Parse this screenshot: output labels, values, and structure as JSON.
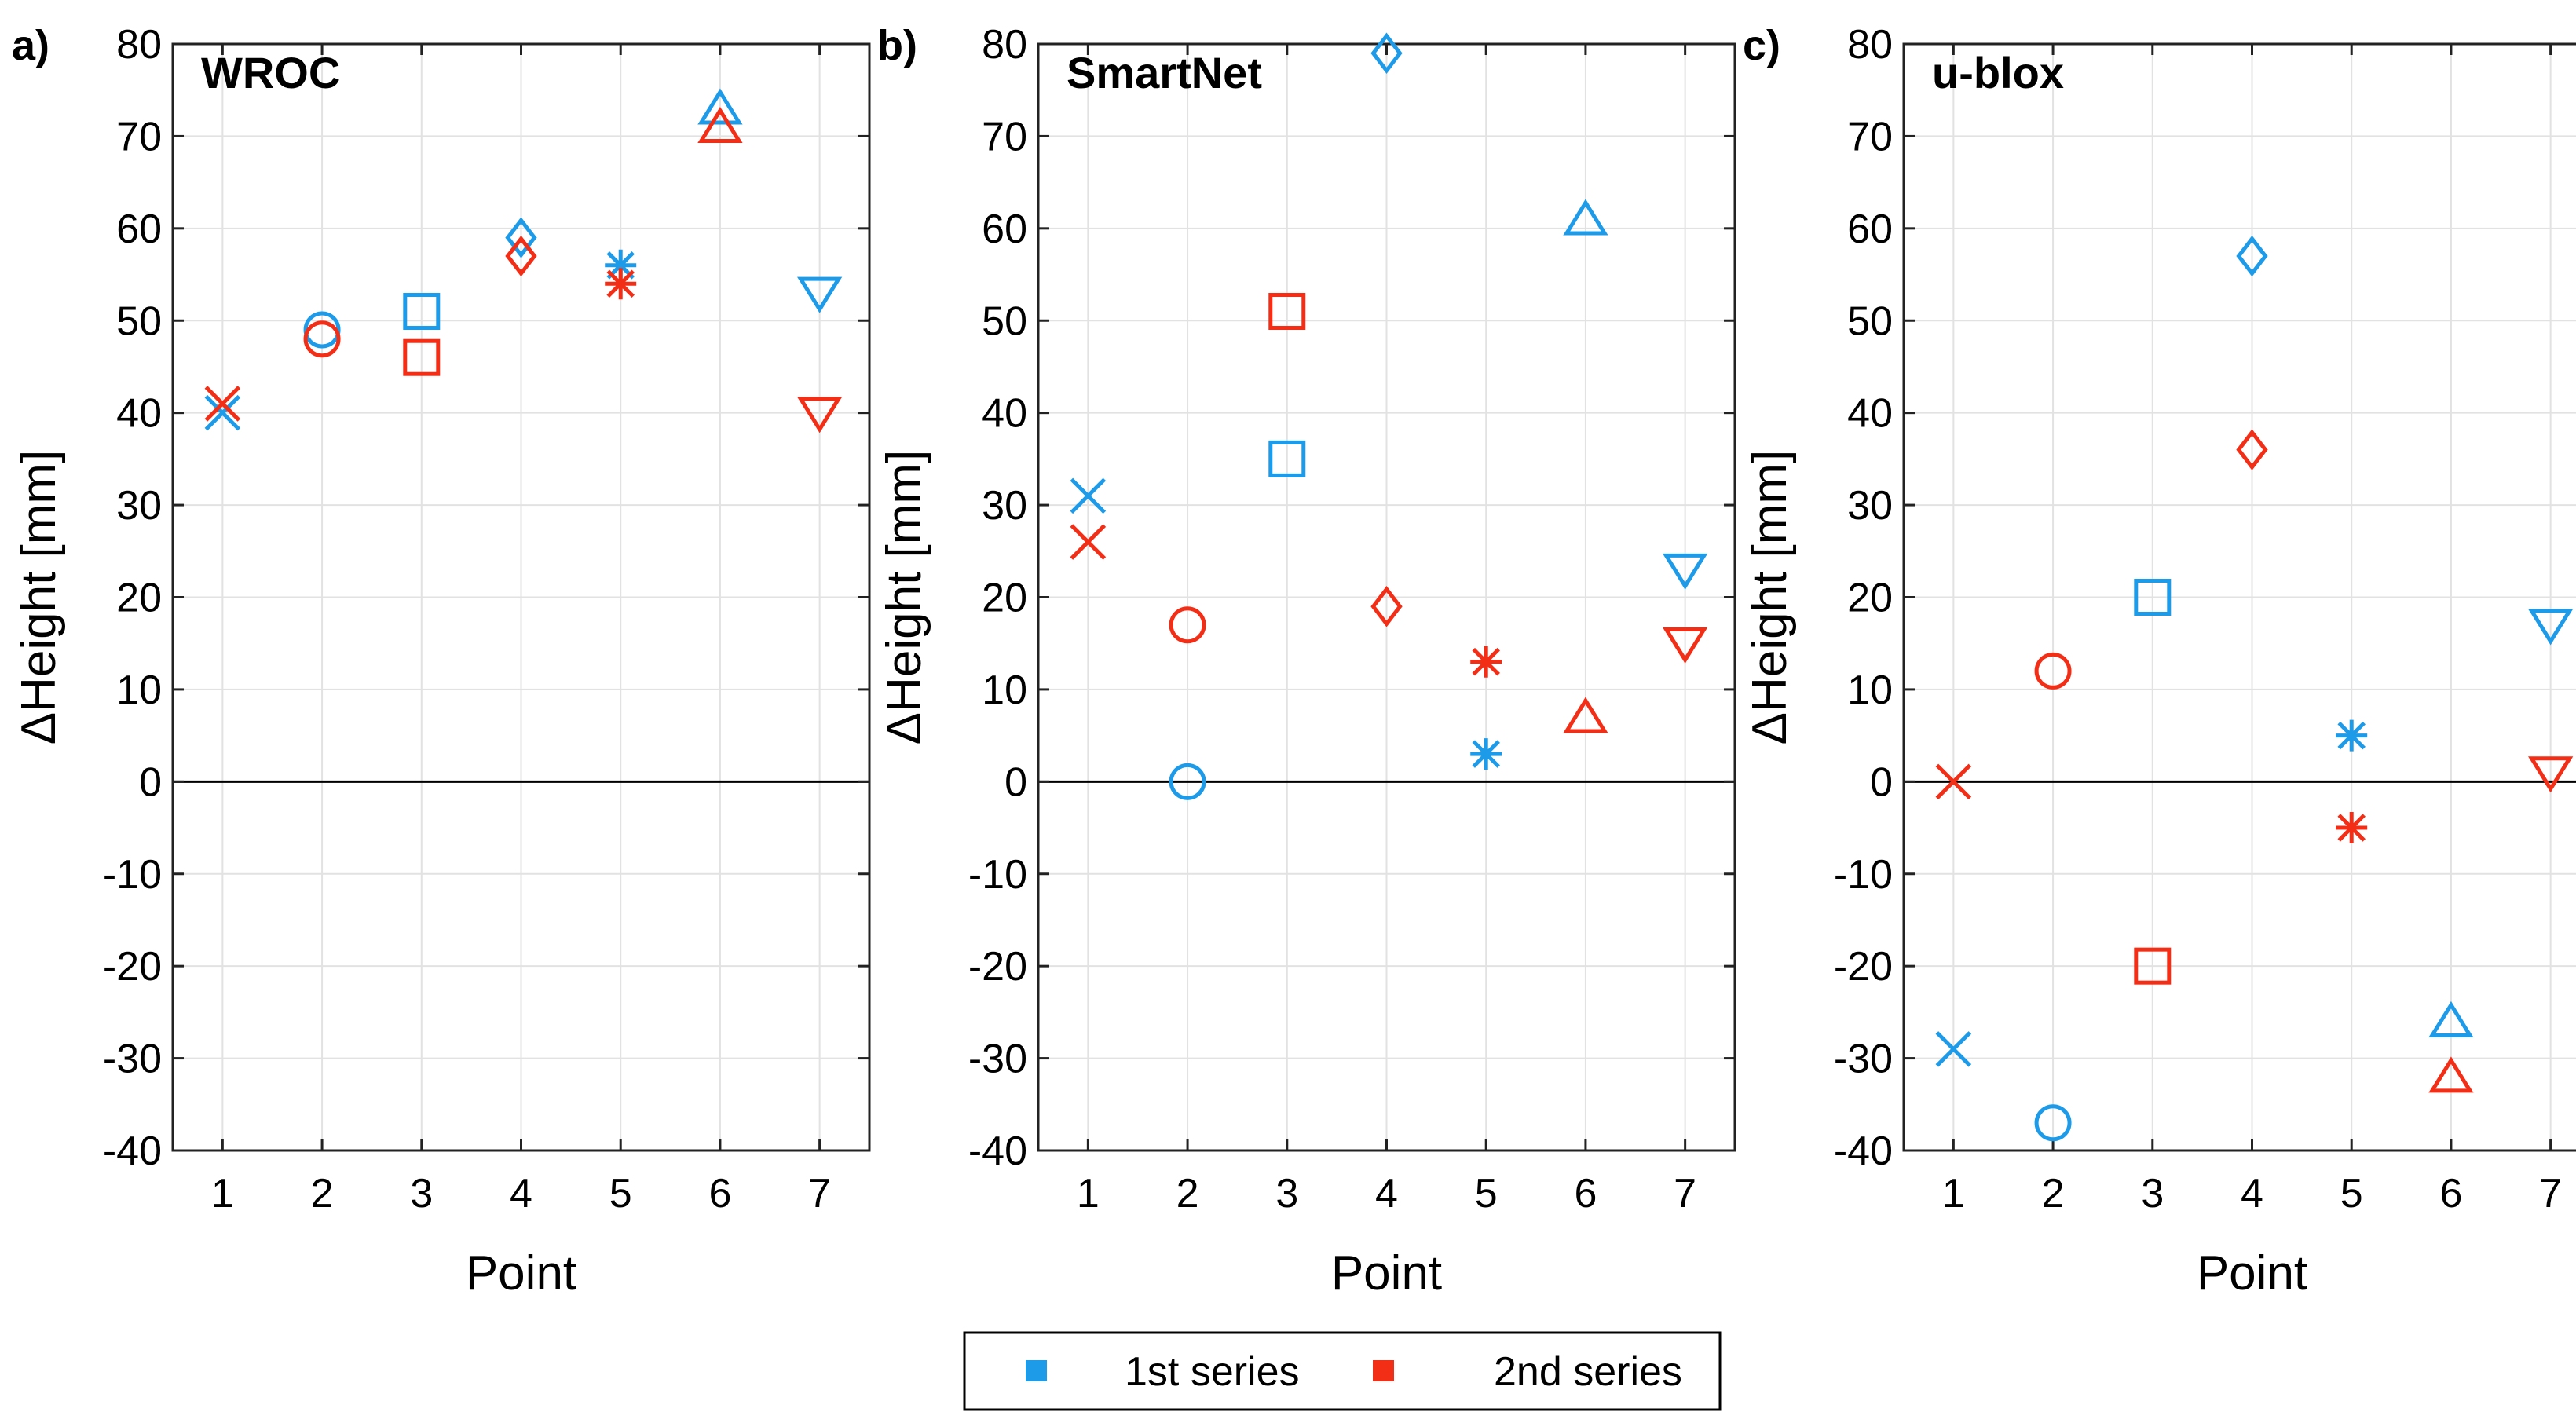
{
  "chart_data": [
    {
      "type": "scatter",
      "panel_label": "a)",
      "title": "WROC",
      "xlabel": "Point",
      "ylabel": "ΔHeight [mm]",
      "xlim": [
        0.5,
        7.5
      ],
      "ylim": [
        -40,
        80
      ],
      "x_ticks": [
        1,
        2,
        3,
        4,
        5,
        6,
        7
      ],
      "y_ticks": [
        -40,
        -30,
        -20,
        -10,
        0,
        10,
        20,
        30,
        40,
        50,
        60,
        70,
        80
      ],
      "grid": true,
      "markers_by_point": [
        "x",
        "circle",
        "square",
        "diamond",
        "asterisk",
        "triangle-up",
        "triangle-down"
      ],
      "series": [
        {
          "name": "1st series",
          "color": "#1E9BE8",
          "x": [
            1,
            2,
            3,
            4,
            5,
            6,
            7
          ],
          "y": [
            40,
            49,
            51,
            59,
            56,
            73,
            53
          ]
        },
        {
          "name": "2nd series",
          "color": "#F22E17",
          "x": [
            1,
            2,
            3,
            4,
            5,
            6,
            7
          ],
          "y": [
            41,
            48,
            46,
            57,
            54,
            71,
            40
          ]
        }
      ]
    },
    {
      "type": "scatter",
      "panel_label": "b)",
      "title": "SmartNet",
      "xlabel": "Point",
      "ylabel": "ΔHeight [mm]",
      "xlim": [
        0.5,
        7.5
      ],
      "ylim": [
        -40,
        80
      ],
      "x_ticks": [
        1,
        2,
        3,
        4,
        5,
        6,
        7
      ],
      "y_ticks": [
        -40,
        -30,
        -20,
        -10,
        0,
        10,
        20,
        30,
        40,
        50,
        60,
        70,
        80
      ],
      "grid": true,
      "markers_by_point": [
        "x",
        "circle",
        "square",
        "diamond",
        "asterisk",
        "triangle-up",
        "triangle-down"
      ],
      "series": [
        {
          "name": "1st series",
          "color": "#1E9BE8",
          "x": [
            1,
            2,
            3,
            4,
            5,
            6,
            7
          ],
          "y": [
            31,
            0,
            35,
            79,
            3,
            61,
            23
          ]
        },
        {
          "name": "2nd series",
          "color": "#F22E17",
          "x": [
            1,
            2,
            3,
            4,
            5,
            6,
            7
          ],
          "y": [
            26,
            17,
            51,
            19,
            13,
            7,
            15
          ]
        }
      ]
    },
    {
      "type": "scatter",
      "panel_label": "c)",
      "title": "u-blox",
      "xlabel": "Point",
      "ylabel": "ΔHeight [mm]",
      "xlim": [
        0.5,
        7.5
      ],
      "ylim": [
        -40,
        80
      ],
      "x_ticks": [
        1,
        2,
        3,
        4,
        5,
        6,
        7
      ],
      "y_ticks": [
        -40,
        -30,
        -20,
        -10,
        0,
        10,
        20,
        30,
        40,
        50,
        60,
        70,
        80
      ],
      "grid": true,
      "markers_by_point": [
        "x",
        "circle",
        "square",
        "diamond",
        "asterisk",
        "triangle-up",
        "triangle-down"
      ],
      "series": [
        {
          "name": "1st series",
          "color": "#1E9BE8",
          "x": [
            1,
            2,
            3,
            4,
            5,
            6,
            7
          ],
          "y": [
            -29,
            -37,
            20,
            57,
            5,
            -26,
            17
          ]
        },
        {
          "name": "2nd series",
          "color": "#F22E17",
          "x": [
            1,
            2,
            3,
            4,
            5,
            6,
            7
          ],
          "y": [
            0,
            12,
            -20,
            36,
            -5,
            -32,
            1
          ]
        }
      ]
    }
  ],
  "legend": {
    "position": "bottom-center",
    "entries": [
      {
        "label": "1st series",
        "color": "#1E9BE8"
      },
      {
        "label": "2nd series",
        "color": "#F22E17"
      }
    ]
  }
}
